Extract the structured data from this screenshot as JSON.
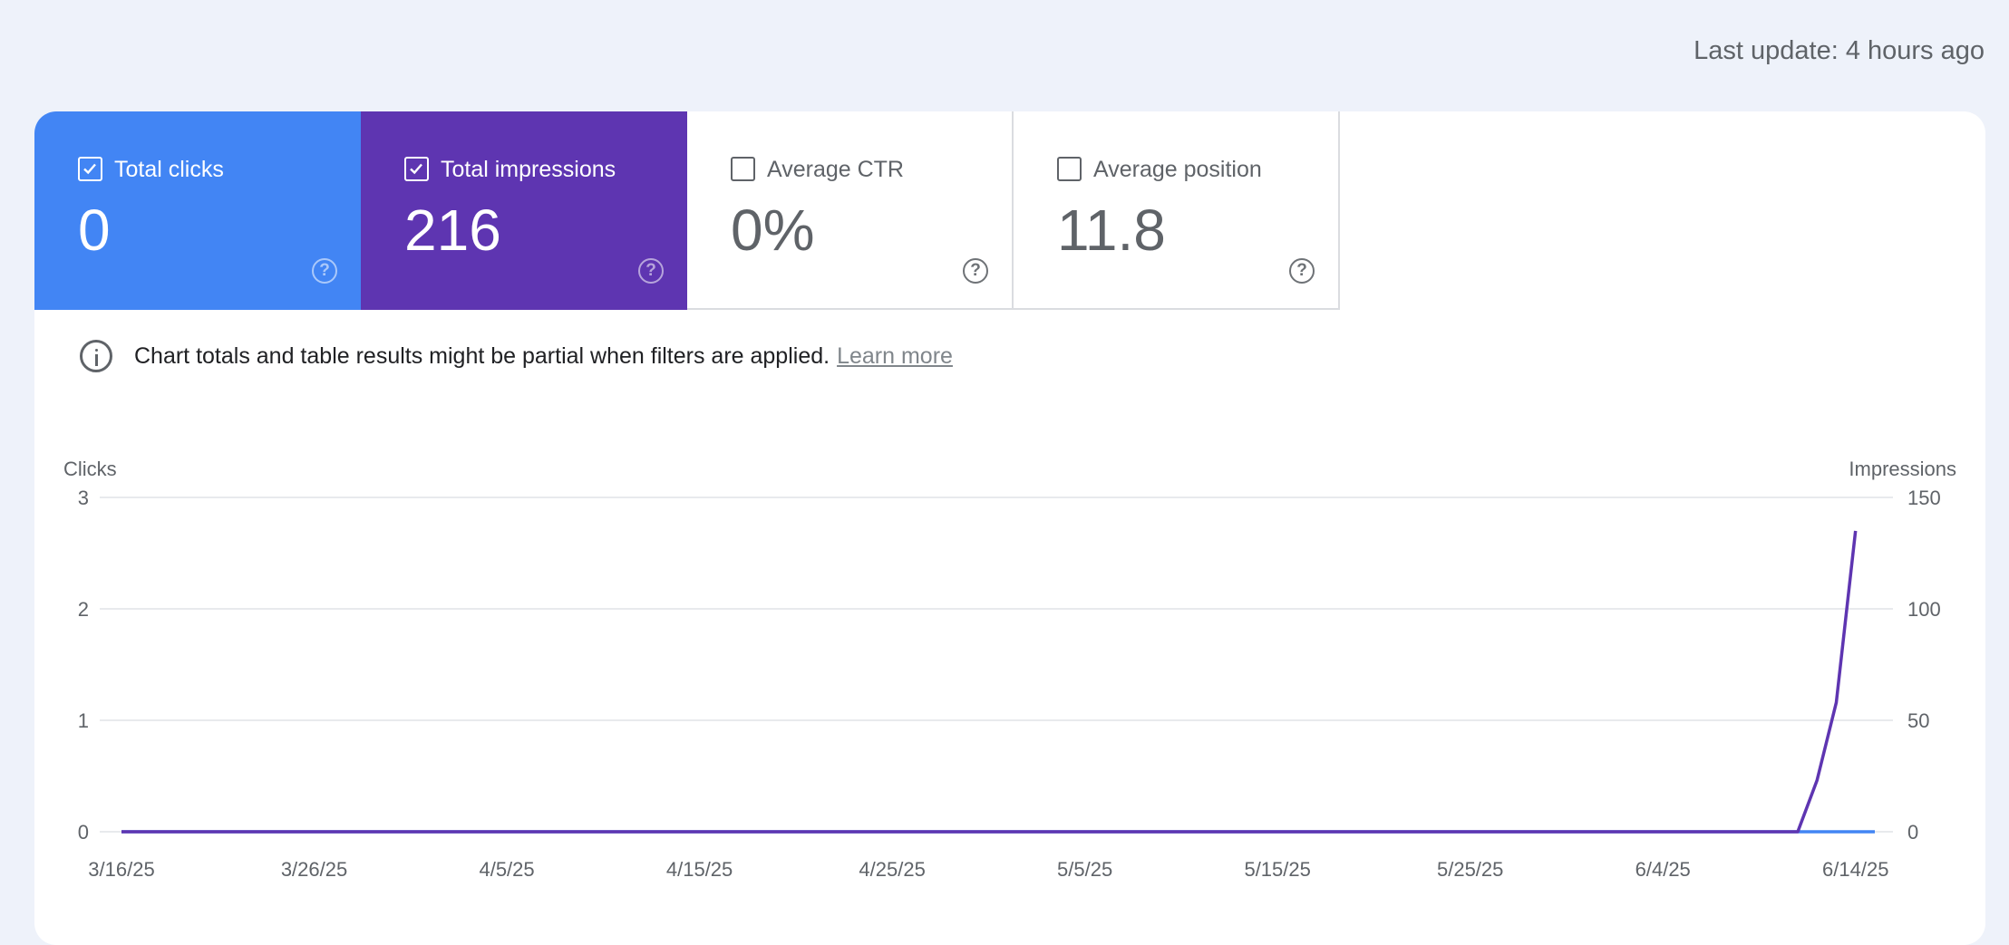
{
  "header": {
    "last_update": "Last update: 4 hours ago"
  },
  "metrics": [
    {
      "label": "Total clicks",
      "value": "0",
      "checked": true,
      "color": "#4285f4"
    },
    {
      "label": "Total impressions",
      "value": "216",
      "checked": true,
      "color": "#5e35b1"
    },
    {
      "label": "Average CTR",
      "value": "0%",
      "checked": false
    },
    {
      "label": "Average position",
      "value": "11.8",
      "checked": false
    }
  ],
  "notice": {
    "text": "Chart totals and table results might be partial when filters are applied.",
    "link": "Learn more",
    "icon": "info-icon"
  },
  "chart_data": {
    "type": "line",
    "y_left_label": "Clicks",
    "y_right_label": "Impressions",
    "y_left_ticks": [
      "0",
      "1",
      "2",
      "3"
    ],
    "y_right_ticks": [
      "0",
      "50",
      "100",
      "150"
    ],
    "y_left_range": [
      0,
      3
    ],
    "y_right_range": [
      0,
      150
    ],
    "x_ticks": [
      "3/16/25",
      "3/26/25",
      "4/5/25",
      "4/15/25",
      "4/25/25",
      "5/5/25",
      "5/15/25",
      "5/25/25",
      "6/4/25",
      "6/14/25"
    ],
    "x_range": [
      "2025-03-16",
      "2025-06-15"
    ],
    "grid": true,
    "series": [
      {
        "name": "Clicks",
        "axis": "left",
        "color": "#4285f4",
        "points": [
          [
            "2025-03-16",
            0
          ],
          [
            "2025-06-15",
            0
          ]
        ]
      },
      {
        "name": "Impressions",
        "axis": "right",
        "color": "#5e35b1",
        "points": [
          [
            "2025-03-16",
            0
          ],
          [
            "2025-06-11",
            0
          ],
          [
            "2025-06-12",
            23
          ],
          [
            "2025-06-13",
            58
          ],
          [
            "2025-06-14",
            135
          ]
        ]
      }
    ]
  }
}
